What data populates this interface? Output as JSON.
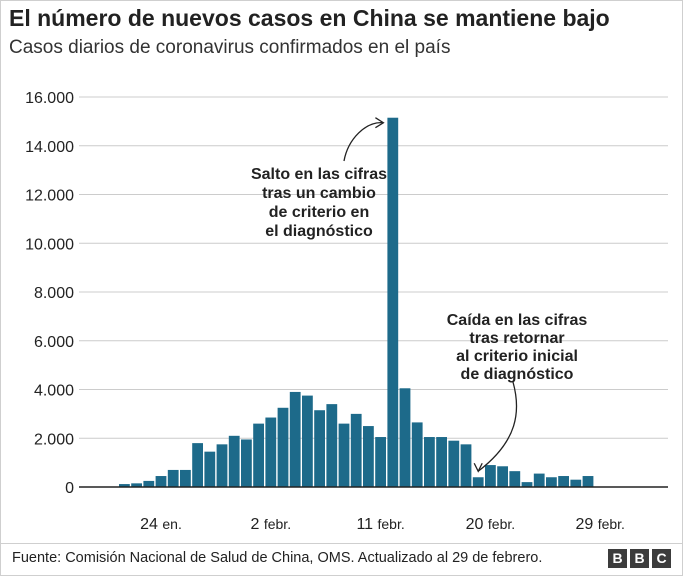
{
  "title": "El número de nuevos casos en China se mantiene bajo",
  "subtitle": "Casos diarios de coronavirus confirmados en el país",
  "chart_data": {
    "type": "bar",
    "title": "El número de nuevos casos en China se mantiene bajo",
    "subtitle": "Casos diarios de coronavirus confirmados en el país",
    "xlabel": "",
    "ylabel": "",
    "ylim": [
      0,
      16000
    ],
    "y_ticks": [
      0,
      2000,
      4000,
      6000,
      8000,
      10000,
      12000,
      14000,
      16000
    ],
    "y_tick_labels": [
      "0",
      "2.000",
      "4.000",
      "6.000",
      "8.000",
      "10.000",
      "12.000",
      "14.000",
      "16.000"
    ],
    "x_tick_labels": [
      {
        "day": 24,
        "month": "en."
      },
      {
        "day": 2,
        "month": "febr."
      },
      {
        "day": 11,
        "month": "febr."
      },
      {
        "day": 20,
        "month": "febr."
      },
      {
        "day": 29,
        "month": "febr."
      }
    ],
    "x_tick_indices": [
      3,
      12,
      21,
      30,
      39
    ],
    "grid": true,
    "bar_color": "#1d6a8a",
    "values": [
      120,
      150,
      250,
      450,
      700,
      700,
      1800,
      1450,
      1750,
      2100,
      1950,
      2600,
      2850,
      3250,
      3900,
      3750,
      3150,
      3400,
      2600,
      3000,
      2500,
      2050,
      15150,
      4050,
      2650,
      2050,
      2050,
      1900,
      1750,
      400,
      900,
      850,
      650,
      200,
      550,
      400,
      450,
      300,
      450
    ],
    "annotations": [
      {
        "text_lines": [
          "Salto en las cifras",
          "tras un cambio",
          "de criterio en",
          "el diagnóstico"
        ],
        "target_index": 22
      },
      {
        "text_lines": [
          "Caída en las cifras",
          "tras retornar",
          "al criterio inicial",
          "de diagnóstico"
        ],
        "target_index": 29
      }
    ]
  },
  "footer": {
    "source": "Fuente: Comisión Nacional de Salud de China, OMS. Actualizado al 29 de febrero.",
    "logo_letters": [
      "B",
      "B",
      "C"
    ]
  }
}
